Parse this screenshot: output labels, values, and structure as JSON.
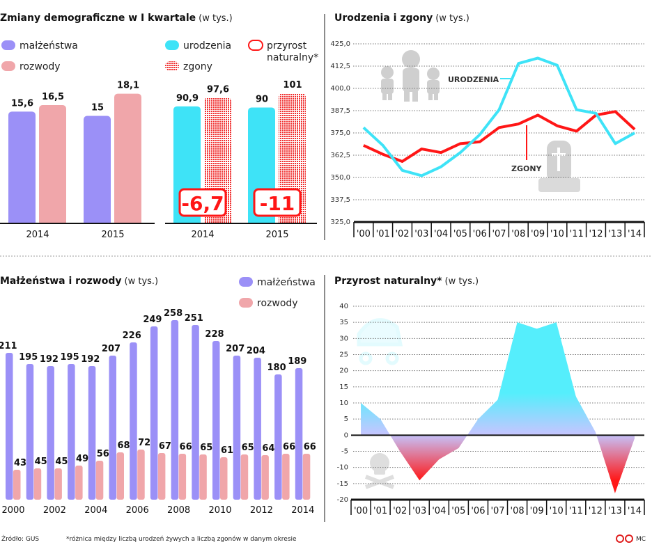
{
  "colors": {
    "malzenstwa": "#9b90f7",
    "rozwody": "#f0a6aa",
    "urodzenia": "#3ee3f7",
    "zgony": "#ff1616",
    "area_positive": "#55eefc",
    "area_zero": "#c4c6ff",
    "area_negative": "#ff1818"
  },
  "panels": {
    "q1": {
      "title": "Zmiany demograficzne w I kwartale",
      "unit": "(w tys.)"
    },
    "lines": {
      "title": "Urodzenia i zgony",
      "unit": "(w tys.)"
    },
    "marriages": {
      "title": "Małżeństwa i rozwody",
      "unit": "(w tys.)"
    },
    "growth": {
      "title": "Przyrost naturalny*",
      "unit": "(w tys.)"
    }
  },
  "chart_data": [
    {
      "type": "bar",
      "categories": [
        "2014",
        "2015"
      ],
      "series": [
        {
          "name": "małżeństwa",
          "values": [
            15.6,
            15
          ]
        },
        {
          "name": "rozwody",
          "values": [
            16.5,
            18.1
          ]
        }
      ]
    },
    {
      "type": "bar",
      "categories": [
        "2014",
        "2015"
      ],
      "series": [
        {
          "name": "urodzenia",
          "values": [
            90.9,
            90
          ]
        },
        {
          "name": "zgony",
          "values": [
            97.6,
            101
          ]
        }
      ],
      "highlight": {
        "name": "przyrost naturalny*",
        "values": [
          -6.7,
          -11
        ]
      }
    },
    {
      "type": "line",
      "categories": [
        "'00",
        "'01",
        "'02",
        "'03",
        "'04",
        "'05",
        "'06",
        "'07",
        "'08",
        "'09",
        "'10",
        "'11",
        "'12",
        "'13",
        "'14"
      ],
      "ylim": [
        325,
        425
      ],
      "y_ticks": [
        425,
        412.5,
        400,
        387.5,
        375,
        362.5,
        350,
        337.5,
        325
      ],
      "grid": true,
      "series": [
        {
          "name": "URODZENIA",
          "values": [
            378,
            368,
            354,
            351,
            356,
            364,
            374,
            388,
            414,
            417,
            413,
            388,
            386,
            369,
            375
          ]
        },
        {
          "name": "ZGONY",
          "values": [
            368,
            363,
            359,
            366,
            364,
            369,
            370,
            378,
            380,
            385,
            379,
            376,
            385,
            387,
            377
          ]
        }
      ]
    },
    {
      "type": "bar",
      "categories": [
        "2000",
        "2001",
        "2002",
        "2003",
        "2004",
        "2005",
        "2006",
        "2007",
        "2008",
        "2009",
        "2010",
        "2011",
        "2012",
        "2013",
        "2014"
      ],
      "x_tick_labels": [
        "2000",
        "2002",
        "2004",
        "2006",
        "2008",
        "2010",
        "2012",
        "2014"
      ],
      "series": [
        {
          "name": "małżeństwa",
          "values": [
            211,
            195,
            192,
            195,
            192,
            207,
            226,
            249,
            258,
            251,
            228,
            207,
            204,
            180,
            189
          ]
        },
        {
          "name": "rozwody",
          "values": [
            43,
            45,
            45,
            49,
            56,
            68,
            72,
            67,
            66,
            65,
            61,
            65,
            64,
            66,
            66
          ]
        }
      ],
      "legend": "top-right"
    },
    {
      "type": "area",
      "categories": [
        "'00",
        "'01",
        "'02",
        "'03",
        "'04",
        "'05",
        "'06",
        "'07",
        "'08",
        "'09",
        "'10",
        "'11",
        "'12",
        "'13",
        "'14"
      ],
      "ylim": [
        -20,
        40
      ],
      "y_ticks": [
        40,
        35,
        30,
        25,
        20,
        15,
        10,
        5,
        0,
        -5,
        -10,
        -15,
        -20
      ],
      "grid": true,
      "values": [
        10,
        5,
        -5,
        -14,
        -7.5,
        -4,
        5,
        11,
        35,
        33,
        35,
        12,
        1,
        -18,
        -1
      ]
    }
  ],
  "icons": {
    "family": "family-icon",
    "tombstone": "tombstone-icon",
    "stroller": "stroller-icon",
    "skull": "skull-icon",
    "license": "cc-license-icon"
  },
  "footer": {
    "source": "Źródło: GUS",
    "note": "*różnica między liczbą urodzeń żywych a liczbą zgonów w danym okresie",
    "author": "MC"
  }
}
